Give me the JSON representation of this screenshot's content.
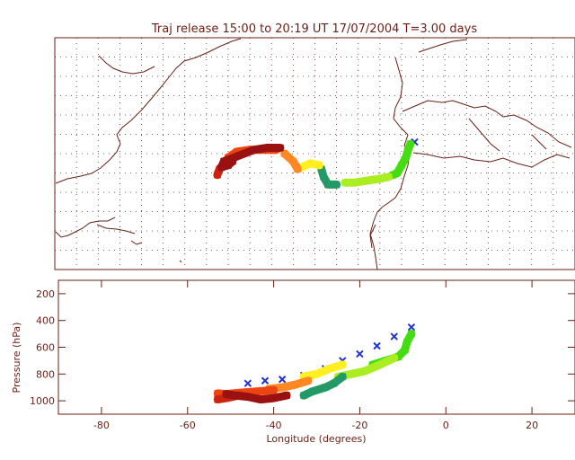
{
  "chart_data": [
    {
      "type": "scatter",
      "panel": "map",
      "title": "Traj release 15:00 to 20:19 UT 17/07/2004     T=3.00 days",
      "xlim": [
        -90,
        30
      ],
      "ylim": [
        0,
        60
      ],
      "grid": true,
      "projection": "cylindrical",
      "series": [
        {
          "color": "#2233cc",
          "points": [
            [
              -7,
              33
            ]
          ]
        },
        {
          "color": "#44dd11",
          "points": [
            [
              -8,
              32.5
            ],
            [
              -8.5,
              31
            ],
            [
              -9,
              29
            ],
            [
              -10,
              27
            ],
            [
              -11,
              25
            ],
            [
              -12,
              24.5
            ]
          ]
        },
        {
          "color": "#aaee22",
          "points": [
            [
              -13,
              24
            ],
            [
              -15,
              23.5
            ],
            [
              -18,
              23
            ],
            [
              -21,
              22.5
            ],
            [
              -23,
              22.5
            ]
          ]
        },
        {
          "color": "#229966",
          "points": [
            [
              -25,
              22
            ],
            [
              -27,
              22
            ],
            [
              -28,
              24
            ],
            [
              -28.5,
              26
            ]
          ]
        },
        {
          "color": "#ffee22",
          "points": [
            [
              -29,
              27
            ],
            [
              -31,
              27.5
            ],
            [
              -33,
              26.5
            ]
          ]
        },
        {
          "color": "#ff8822",
          "points": [
            [
              -34,
              26
            ],
            [
              -35,
              28
            ],
            [
              -37,
              30
            ]
          ]
        },
        {
          "color": "#ee4411",
          "points": [
            [
              -39,
              31
            ],
            [
              -42,
              31
            ],
            [
              -45,
              31
            ],
            [
              -48,
              30.5
            ],
            [
              -50,
              29
            ]
          ]
        },
        {
          "color": "#cc2211",
          "points": [
            [
              -51,
              27.5
            ],
            [
              -52,
              26
            ],
            [
              -52.5,
              24.5
            ]
          ]
        },
        {
          "color": "#991111",
          "points": [
            [
              -38,
              31.5
            ],
            [
              -41,
              31.5
            ],
            [
              -44,
              31
            ],
            [
              -51,
              28
            ],
            [
              -51.5,
              26.5
            ],
            [
              -50,
              27
            ],
            [
              -49,
              28
            ]
          ]
        }
      ]
    },
    {
      "type": "scatter",
      "panel": "pressure",
      "xlabel": "Longitude  (degrees)",
      "ylabel": "Pressure  (hPa)",
      "xlim": [
        -90,
        30
      ],
      "ylim": [
        1100,
        100
      ],
      "xticks": [
        -80,
        -60,
        -40,
        -20,
        0,
        20
      ],
      "yticks": [
        200,
        400,
        600,
        800,
        1000
      ],
      "series": [
        {
          "color": "#2233cc",
          "points": [
            [
              -8,
              450
            ],
            [
              -12,
              520
            ],
            [
              -16,
              590
            ],
            [
              -20,
              650
            ],
            [
              -24,
              700
            ],
            [
              -28,
              760
            ],
            [
              -33,
              810
            ],
            [
              -38,
              840
            ],
            [
              -42,
              850
            ],
            [
              -46,
              870
            ]
          ]
        },
        {
          "color": "#44dd11",
          "points": [
            [
              -8,
              500
            ],
            [
              -9,
              560
            ],
            [
              -9.5,
              620
            ],
            [
              -11,
              670
            ],
            [
              -14,
              700
            ],
            [
              -17,
              730
            ]
          ]
        },
        {
          "color": "#aaee22",
          "points": [
            [
              -12,
              680
            ],
            [
              -16,
              740
            ],
            [
              -19,
              780
            ],
            [
              -22,
              800
            ],
            [
              -25,
              820
            ]
          ]
        },
        {
          "color": "#229966",
          "points": [
            [
              -24,
              820
            ],
            [
              -26,
              870
            ],
            [
              -28,
              900
            ],
            [
              -31,
              930
            ],
            [
              -33,
              960
            ]
          ]
        },
        {
          "color": "#ffee22",
          "points": [
            [
              -24,
              730
            ],
            [
              -27,
              760
            ],
            [
              -30,
              800
            ],
            [
              -33,
              820
            ]
          ]
        },
        {
          "color": "#ff8822",
          "points": [
            [
              -32,
              850
            ],
            [
              -35,
              880
            ],
            [
              -38,
              900
            ],
            [
              -41,
              910
            ]
          ]
        },
        {
          "color": "#ee4411",
          "points": [
            [
              -40,
              920
            ],
            [
              -44,
              930
            ],
            [
              -48,
              940
            ],
            [
              -51,
              950
            ],
            [
              -53,
              945
            ]
          ]
        },
        {
          "color": "#cc2211",
          "points": [
            [
              -48,
              960
            ],
            [
              -51,
              980
            ],
            [
              -53,
              990
            ]
          ]
        },
        {
          "color": "#991111",
          "points": [
            [
              -37,
              960
            ],
            [
              -40,
              980
            ],
            [
              -43,
              990
            ],
            [
              -46,
              970
            ],
            [
              -49,
              960
            ],
            [
              -51,
              950
            ]
          ]
        }
      ]
    }
  ]
}
